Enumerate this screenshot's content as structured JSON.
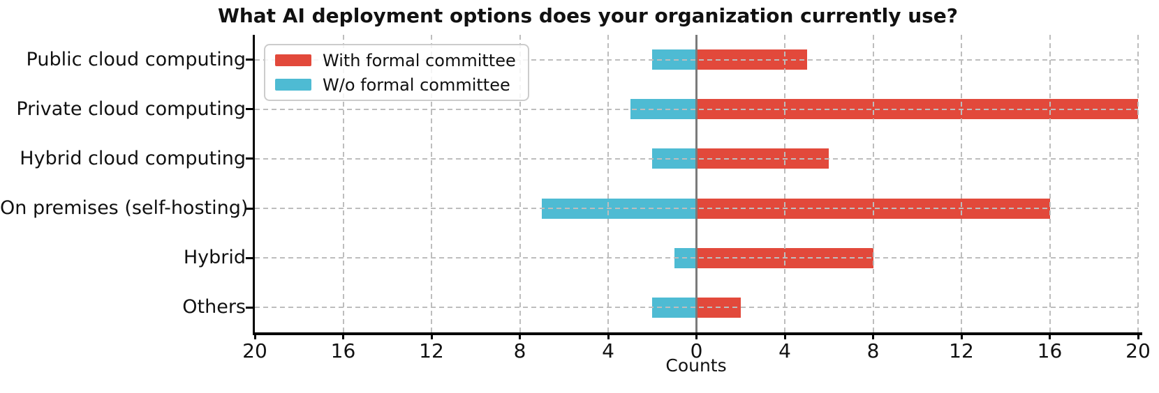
{
  "chart_data": {
    "type": "bar",
    "orientation": "horizontal-diverging",
    "title": "What AI deployment options does your organization currently use?",
    "xlabel": "Counts",
    "categories": [
      "Public cloud computing",
      "Private cloud computing",
      "Hybrid cloud computing",
      "On premises (self-hosting)",
      "Hybrid",
      "Others"
    ],
    "series": [
      {
        "name": "With formal committee",
        "color": "#E2493B",
        "direction": "right",
        "values": [
          5,
          20,
          6,
          16,
          8,
          2
        ]
      },
      {
        "name": "W/o formal committee",
        "color": "#4EBBD3",
        "direction": "left",
        "values": [
          2,
          3,
          2,
          7,
          1,
          2
        ]
      }
    ],
    "x_axis": {
      "range": [
        -20,
        20
      ],
      "tick_values": [
        -20,
        -16,
        -12,
        -8,
        -4,
        0,
        4,
        8,
        12,
        16,
        20
      ],
      "tick_labels": [
        "20",
        "16",
        "12",
        "8",
        "4",
        "0",
        "4",
        "8",
        "12",
        "16",
        "20"
      ]
    },
    "legend": {
      "position": "upper-left",
      "entries": [
        "With formal committee",
        "W/o formal committee"
      ]
    },
    "grid": {
      "show": true,
      "style": "dashed",
      "color": "#BDBDBD"
    },
    "zero_line_color": "#7A7A7A",
    "spine_color": "#000000",
    "background_color": "#FFFFFF"
  }
}
